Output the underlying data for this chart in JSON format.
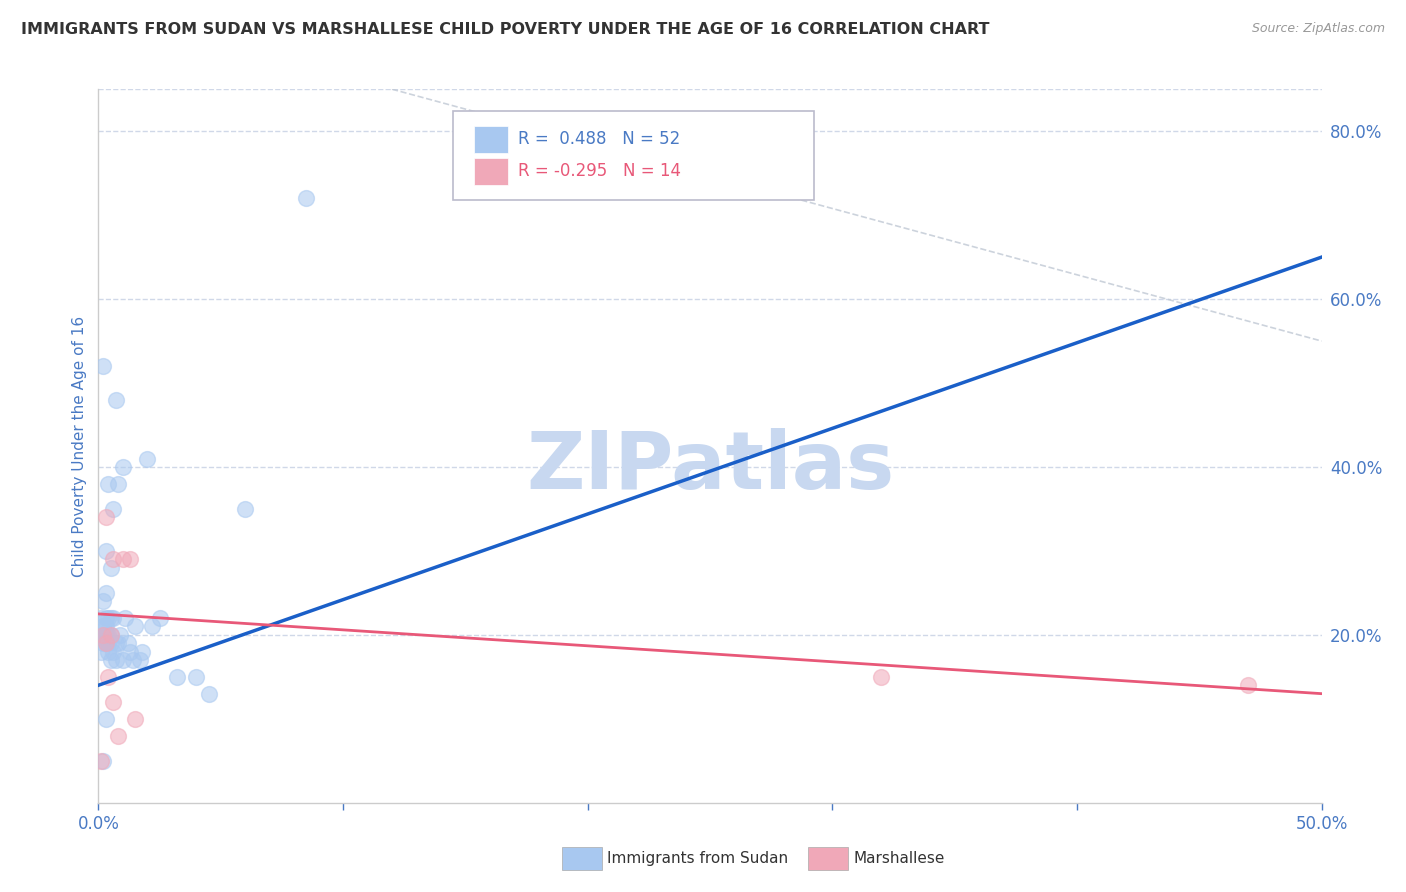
{
  "title": "IMMIGRANTS FROM SUDAN VS MARSHALLESE CHILD POVERTY UNDER THE AGE OF 16 CORRELATION CHART",
  "source": "Source: ZipAtlas.com",
  "ylabel": "Child Poverty Under the Age of 16",
  "legend_label_blue": "Immigrants from Sudan",
  "legend_label_pink": "Marshallese",
  "R_blue": 0.488,
  "N_blue": 52,
  "R_pink": -0.295,
  "N_pink": 14,
  "xlim": [
    0.0,
    0.5
  ],
  "ylim": [
    -0.02,
    0.88
  ],
  "plot_ylim": [
    0.0,
    0.85
  ],
  "xtick_positions": [
    0.0,
    0.1,
    0.2,
    0.3,
    0.4,
    0.5
  ],
  "xtick_labels_visible": [
    "0.0%",
    "",
    "",
    "",
    "",
    "50.0%"
  ],
  "yticks_right": [
    0.2,
    0.4,
    0.6,
    0.8
  ],
  "ytick_right_labels": [
    "20.0%",
    "40.0%",
    "60.0%",
    "80.0%"
  ],
  "watermark": "ZIPatlas",
  "watermark_color": "#c8d8f0",
  "blue_color": "#a8c8f0",
  "pink_color": "#f0a8b8",
  "trendline_blue_color": "#1a5fc8",
  "trendline_pink_color": "#e85878",
  "grid_color": "#d0d8e8",
  "axis_label_color": "#4a7ac4",
  "title_color": "#333333",
  "background_color": "#ffffff",
  "blue_scatter_x": [
    0.001,
    0.001,
    0.001,
    0.002,
    0.002,
    0.002,
    0.002,
    0.002,
    0.002,
    0.003,
    0.003,
    0.003,
    0.003,
    0.003,
    0.003,
    0.003,
    0.004,
    0.004,
    0.004,
    0.004,
    0.004,
    0.005,
    0.005,
    0.005,
    0.005,
    0.005,
    0.006,
    0.006,
    0.006,
    0.007,
    0.007,
    0.007,
    0.008,
    0.008,
    0.009,
    0.01,
    0.01,
    0.011,
    0.012,
    0.013,
    0.014,
    0.015,
    0.017,
    0.018,
    0.02,
    0.022,
    0.025,
    0.032,
    0.04,
    0.045,
    0.06,
    0.085
  ],
  "blue_scatter_y": [
    0.18,
    0.2,
    0.22,
    0.19,
    0.2,
    0.21,
    0.24,
    0.52,
    0.05,
    0.19,
    0.2,
    0.21,
    0.22,
    0.25,
    0.3,
    0.1,
    0.18,
    0.19,
    0.2,
    0.22,
    0.38,
    0.17,
    0.19,
    0.2,
    0.22,
    0.28,
    0.18,
    0.22,
    0.35,
    0.17,
    0.19,
    0.48,
    0.19,
    0.38,
    0.2,
    0.17,
    0.4,
    0.22,
    0.19,
    0.18,
    0.17,
    0.21,
    0.17,
    0.18,
    0.41,
    0.21,
    0.22,
    0.15,
    0.15,
    0.13,
    0.35,
    0.72
  ],
  "pink_scatter_x": [
    0.001,
    0.002,
    0.003,
    0.003,
    0.004,
    0.005,
    0.006,
    0.006,
    0.008,
    0.01,
    0.013,
    0.015,
    0.32,
    0.47
  ],
  "pink_scatter_y": [
    0.05,
    0.2,
    0.19,
    0.34,
    0.15,
    0.2,
    0.12,
    0.29,
    0.08,
    0.29,
    0.29,
    0.1,
    0.15,
    0.14
  ],
  "blue_trendline_x": [
    0.0,
    0.5
  ],
  "blue_trendline_y": [
    0.14,
    0.65
  ],
  "pink_trendline_x": [
    0.0,
    0.5
  ],
  "pink_trendline_y": [
    0.225,
    0.13
  ],
  "diag_line_x": [
    0.12,
    0.5
  ],
  "diag_line_y": [
    0.85,
    0.55
  ]
}
